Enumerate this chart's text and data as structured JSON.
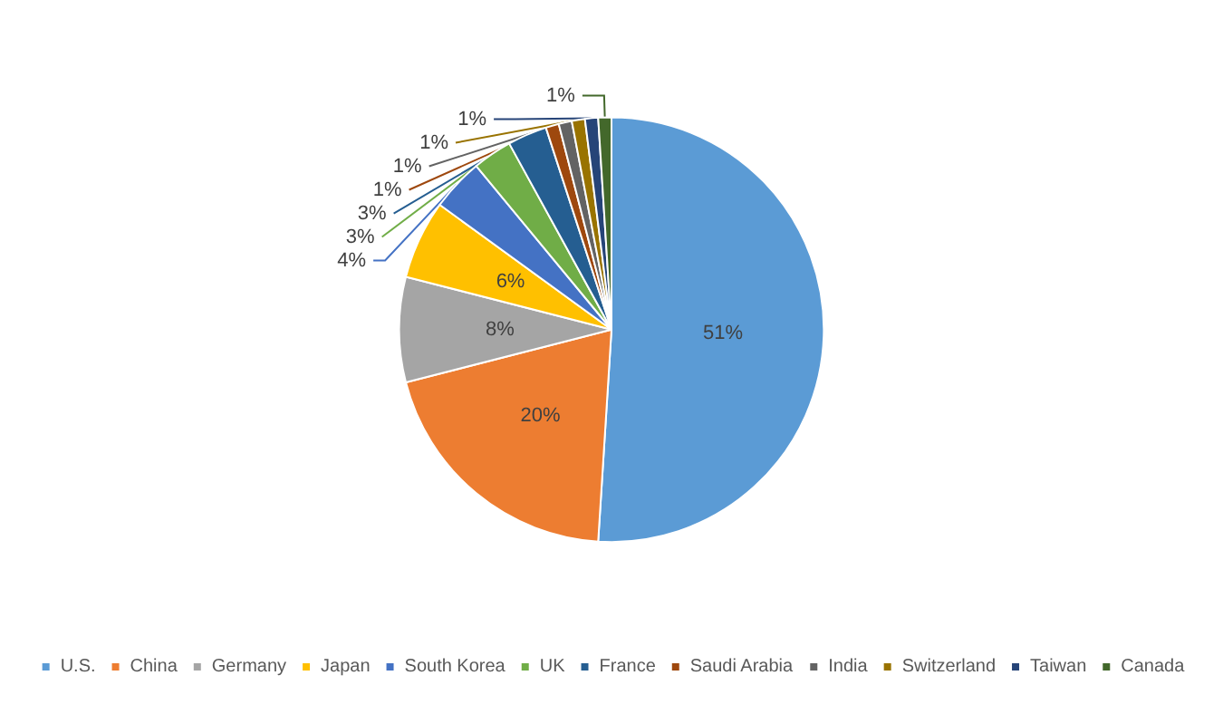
{
  "chart_data": {
    "type": "pie",
    "categories": [
      "U.S.",
      "China",
      "Germany",
      "Japan",
      "South Korea",
      "UK",
      "France",
      "Saudi Arabia",
      "India",
      "Switzerland",
      "Taiwan",
      "Canada"
    ],
    "values": [
      51,
      20,
      8,
      6,
      4,
      3,
      3,
      1,
      1,
      1,
      1,
      1
    ],
    "colors": [
      "#5b9bd5",
      "#ed7d31",
      "#a5a5a5",
      "#ffc000",
      "#4472c4",
      "#70ad47",
      "#255e91",
      "#9e480e",
      "#636363",
      "#997300",
      "#264478",
      "#43682b"
    ],
    "value_labels": [
      "51%",
      "20%",
      "8%",
      "6%",
      "4%",
      "3%",
      "3%",
      "1%",
      "1%",
      "1%",
      "1%",
      "1%"
    ],
    "legend": "bottom"
  }
}
